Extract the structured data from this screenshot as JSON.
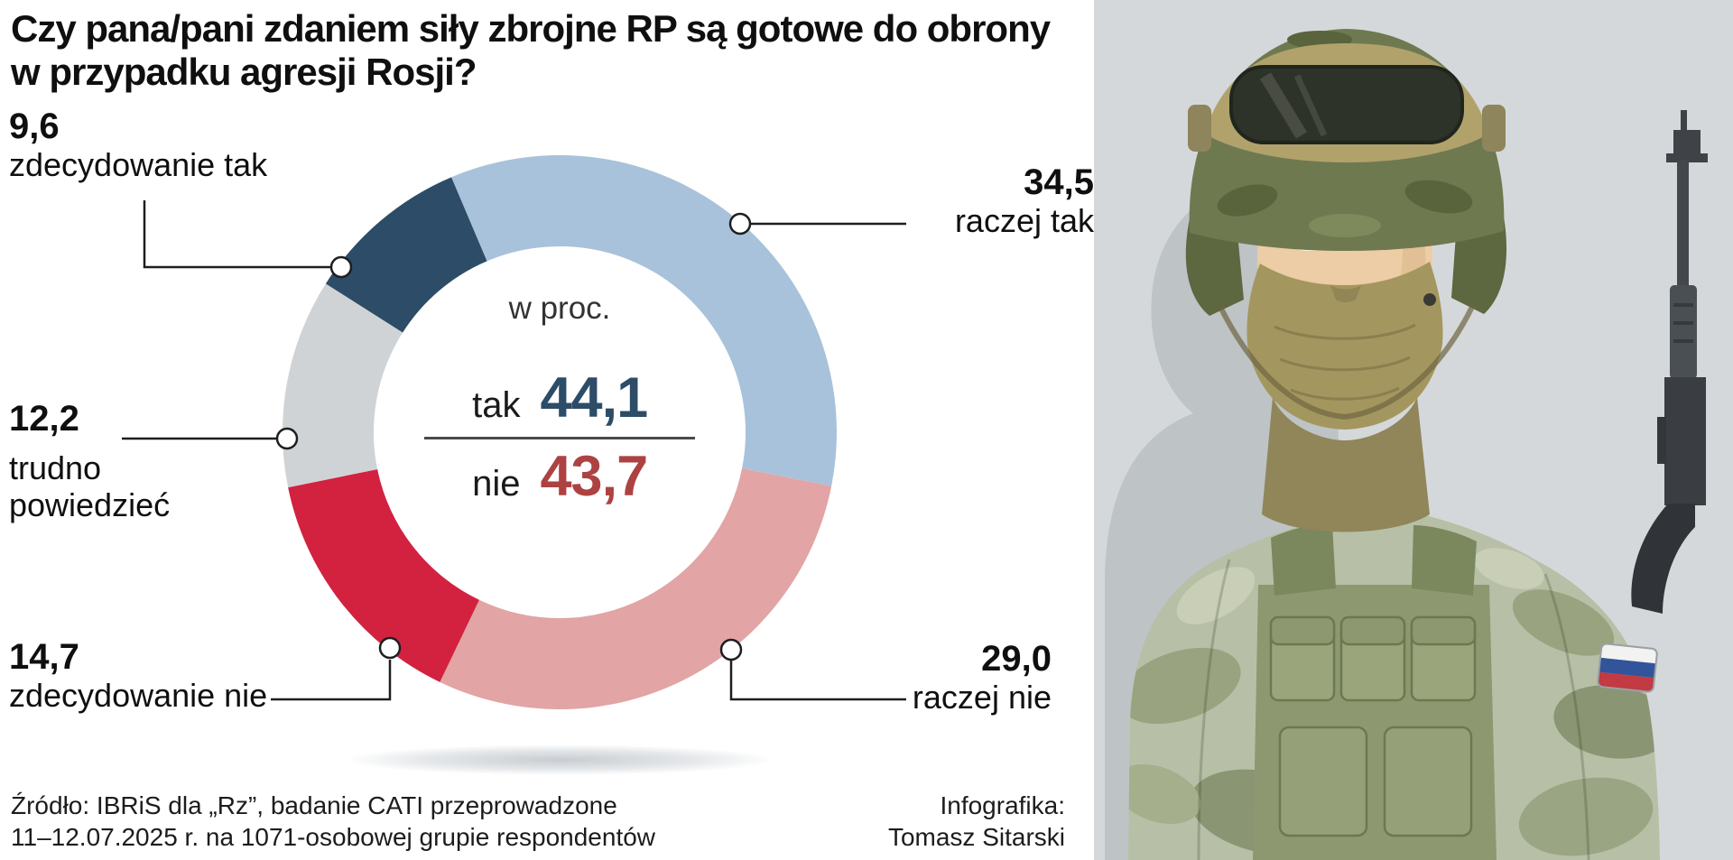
{
  "title": {
    "line1": "Czy pana/pani zdaniem siły zbrojne RP są gotowe do obrony",
    "line2": "w przypadku agresji Rosji?"
  },
  "chart_data": {
    "type": "pie",
    "variant": "donut",
    "units": "percent",
    "center_note": "w proc.",
    "start_angle_deg": -23,
    "direction": "clockwise",
    "segments": [
      {
        "label": "raczej tak",
        "value": 34.5,
        "display": "34,5",
        "color": "#a9c2db"
      },
      {
        "label": "raczej nie",
        "value": 29.0,
        "display": "29,0",
        "color": "#e2a4a4"
      },
      {
        "label": "zdecydowanie nie",
        "value": 14.7,
        "display": "14,7",
        "color": "#d22240"
      },
      {
        "label": "trudno powiedzieć",
        "value": 12.2,
        "display": "12,2",
        "color": "#d0d3d5"
      },
      {
        "label": "zdecydowanie tak",
        "value": 9.6,
        "display": "9,6",
        "color": "#2c4c67"
      }
    ],
    "summary": {
      "tak": {
        "label": "tak",
        "value": 44.1,
        "display": "44,1",
        "color": "#2c4c67"
      },
      "nie": {
        "label": "nie",
        "value": 43.7,
        "display": "43,7",
        "color": "#ad4243"
      }
    }
  },
  "footer": {
    "source_line1": "Źródło: IBRiS dla „Rz”, badanie CATI przeprowadzone",
    "source_line2": "11–12.07.2025 r. na 1071-osobowej grupie respondentów",
    "credit_line1": "Infografika:",
    "credit_line2": "Tomasz Sitarski"
  },
  "illustration": {
    "subject": "soldier-with-helmet-goggles-balaclava-and-rifle",
    "flag_patch_colors": [
      "#f2f2f0",
      "#32549b",
      "#c23a42"
    ],
    "background_color": "#d5d8da"
  }
}
